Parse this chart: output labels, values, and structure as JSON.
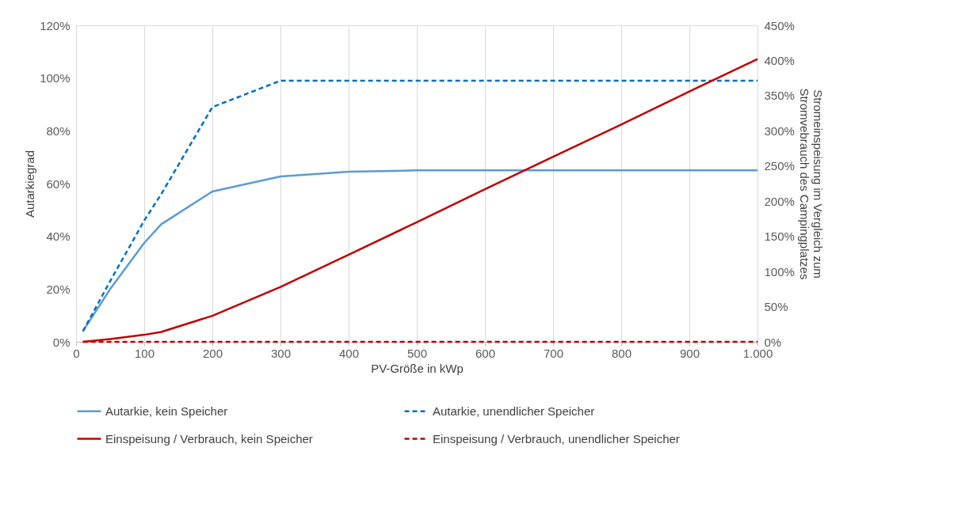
{
  "chart_data": {
    "type": "line",
    "xlabel": "PV-Größe in kWp",
    "ylabel": "Autarkiegrad",
    "y2label": "Stromeinspeisung im Vergleich zum\nStromvebrauch des Campingplatzes",
    "x": [
      10,
      50,
      100,
      125,
      200,
      300,
      400,
      500,
      600,
      700,
      800,
      900,
      1000
    ],
    "xlim": [
      0,
      1000
    ],
    "xticks": [
      0,
      100,
      200,
      300,
      400,
      500,
      600,
      700,
      800,
      900,
      {
        "value": 1000,
        "label": "1.000"
      }
    ],
    "ylim": [
      0,
      120
    ],
    "yticks": [
      {
        "value": 0,
        "label": "0%"
      },
      {
        "value": 20,
        "label": "20%"
      },
      {
        "value": 40,
        "label": "40%"
      },
      {
        "value": 60,
        "label": "60%"
      },
      {
        "value": 80,
        "label": "80%"
      },
      {
        "value": 100,
        "label": "100%"
      },
      {
        "value": 120,
        "label": "120%"
      }
    ],
    "y2lim": [
      0,
      450
    ],
    "y2ticks": [
      {
        "value": 0,
        "label": "0%"
      },
      {
        "value": 50,
        "label": "50%"
      },
      {
        "value": 100,
        "label": "100%"
      },
      {
        "value": 150,
        "label": "150%"
      },
      {
        "value": 200,
        "label": "200%"
      },
      {
        "value": 250,
        "label": "250%"
      },
      {
        "value": 300,
        "label": "300%"
      },
      {
        "value": 350,
        "label": "350%"
      },
      {
        "value": 400,
        "label": "400%"
      },
      {
        "value": 450,
        "label": "450%"
      }
    ],
    "grid": "x",
    "legend": "bottom",
    "marker": "none",
    "series": [
      {
        "name": "Autarkie, kein Speicher",
        "color": "#5b9bd5",
        "line_style": "solid",
        "values": [
          4,
          20,
          37.5,
          44.6,
          57,
          62.7,
          64.5,
          65,
          65,
          65,
          65,
          65,
          65
        ]
      },
      {
        "name": "Autarkie, unendlicher Speicher",
        "color": "#0070c0",
        "line_style": "dashed",
        "values": [
          4,
          23,
          46,
          56,
          89,
          99,
          99,
          99,
          99,
          99,
          99,
          99,
          99
        ]
      },
      {
        "name": "Einspeisung / Verbrauch, kein Speicher",
        "color": "#c00000",
        "line_style": "solid",
        "axis": "y2",
        "values": [
          0,
          4,
          10,
          14,
          37,
          78,
          124,
          170,
          217,
          263,
          309,
          356,
          402
        ]
      },
      {
        "name": "Einspeisung / Verbrauch, unendlicher Speicher",
        "color": "#c00000",
        "line_style": "dashed",
        "axis": "y2",
        "values": [
          0,
          0,
          0,
          0,
          0,
          0,
          0,
          0,
          0,
          0,
          0,
          0,
          0
        ]
      }
    ]
  }
}
